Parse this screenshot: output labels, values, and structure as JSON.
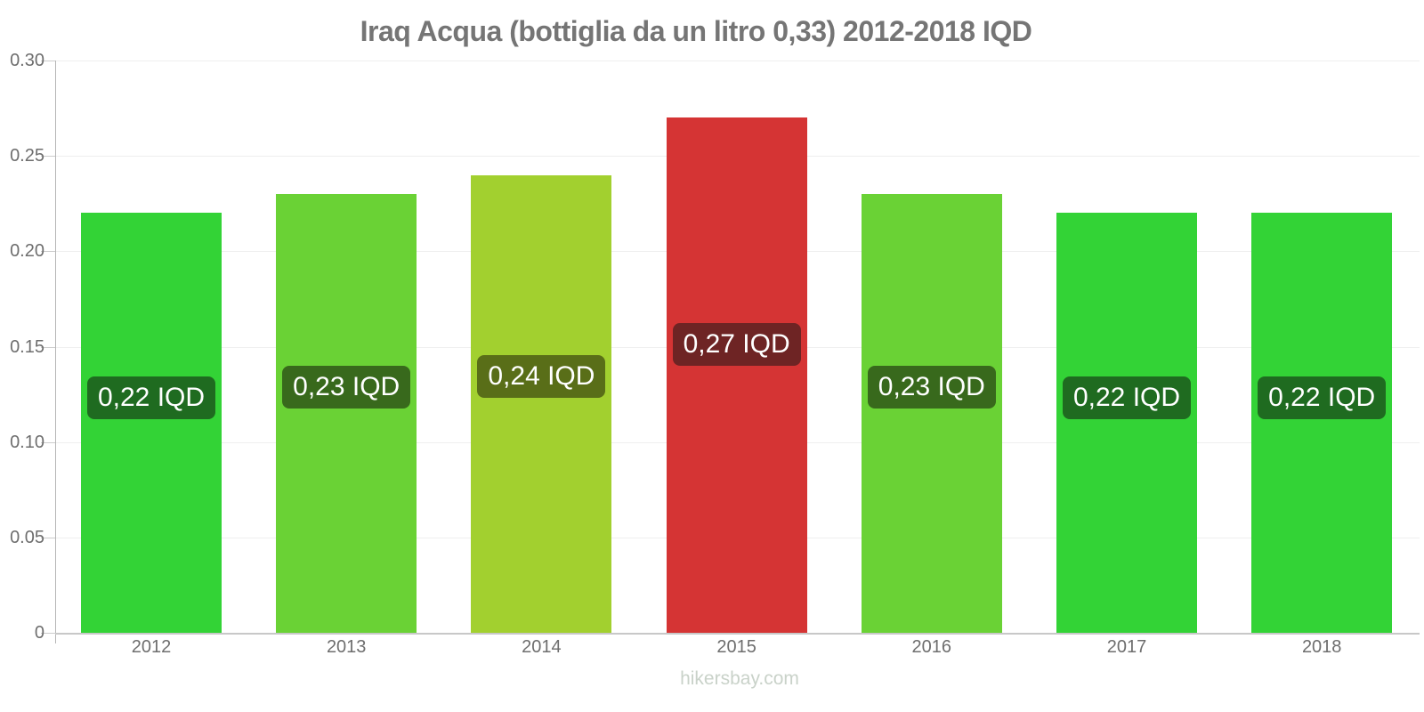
{
  "watermark": {
    "text": "hikersbay.com",
    "color": "#c9d2c9"
  },
  "chart_data": {
    "type": "bar",
    "title": "Iraq Acqua (bottiglia da un litro 0,33) 2012-2018 IQD",
    "title_color": "#757575",
    "categories": [
      "2012",
      "2013",
      "2014",
      "2015",
      "2016",
      "2017",
      "2018"
    ],
    "values": [
      0.22,
      0.23,
      0.24,
      0.27,
      0.23,
      0.22,
      0.22
    ],
    "bar_labels": [
      "0,22 IQD",
      "0,23 IQD",
      "0,24 IQD",
      "0,27 IQD",
      "0,23 IQD",
      "0,22 IQD",
      "0,22 IQD"
    ],
    "bar_colors": [
      "#33d336",
      "#6ad235",
      "#a2d02f",
      "#d53434",
      "#6ad235",
      "#33d336",
      "#33d336"
    ],
    "badge_colors": [
      "#1f6b20",
      "#38691c",
      "#596e18",
      "#6e2424",
      "#38691c",
      "#1f6b20",
      "#1f6b20"
    ],
    "unit": "IQD",
    "ylim": [
      0,
      0.3
    ],
    "yticks": [
      0,
      0.05,
      0.1,
      0.15,
      0.2,
      0.25,
      0.3
    ],
    "ytick_labels": [
      "0",
      "0.05",
      "0.10",
      "0.15",
      "0.20",
      "0.25",
      "0.30"
    ],
    "grid": true,
    "legend": false,
    "axis_color": "#b6b6b6",
    "grid_color": "#efefef",
    "tick_label_color": "#6e6e6e"
  }
}
